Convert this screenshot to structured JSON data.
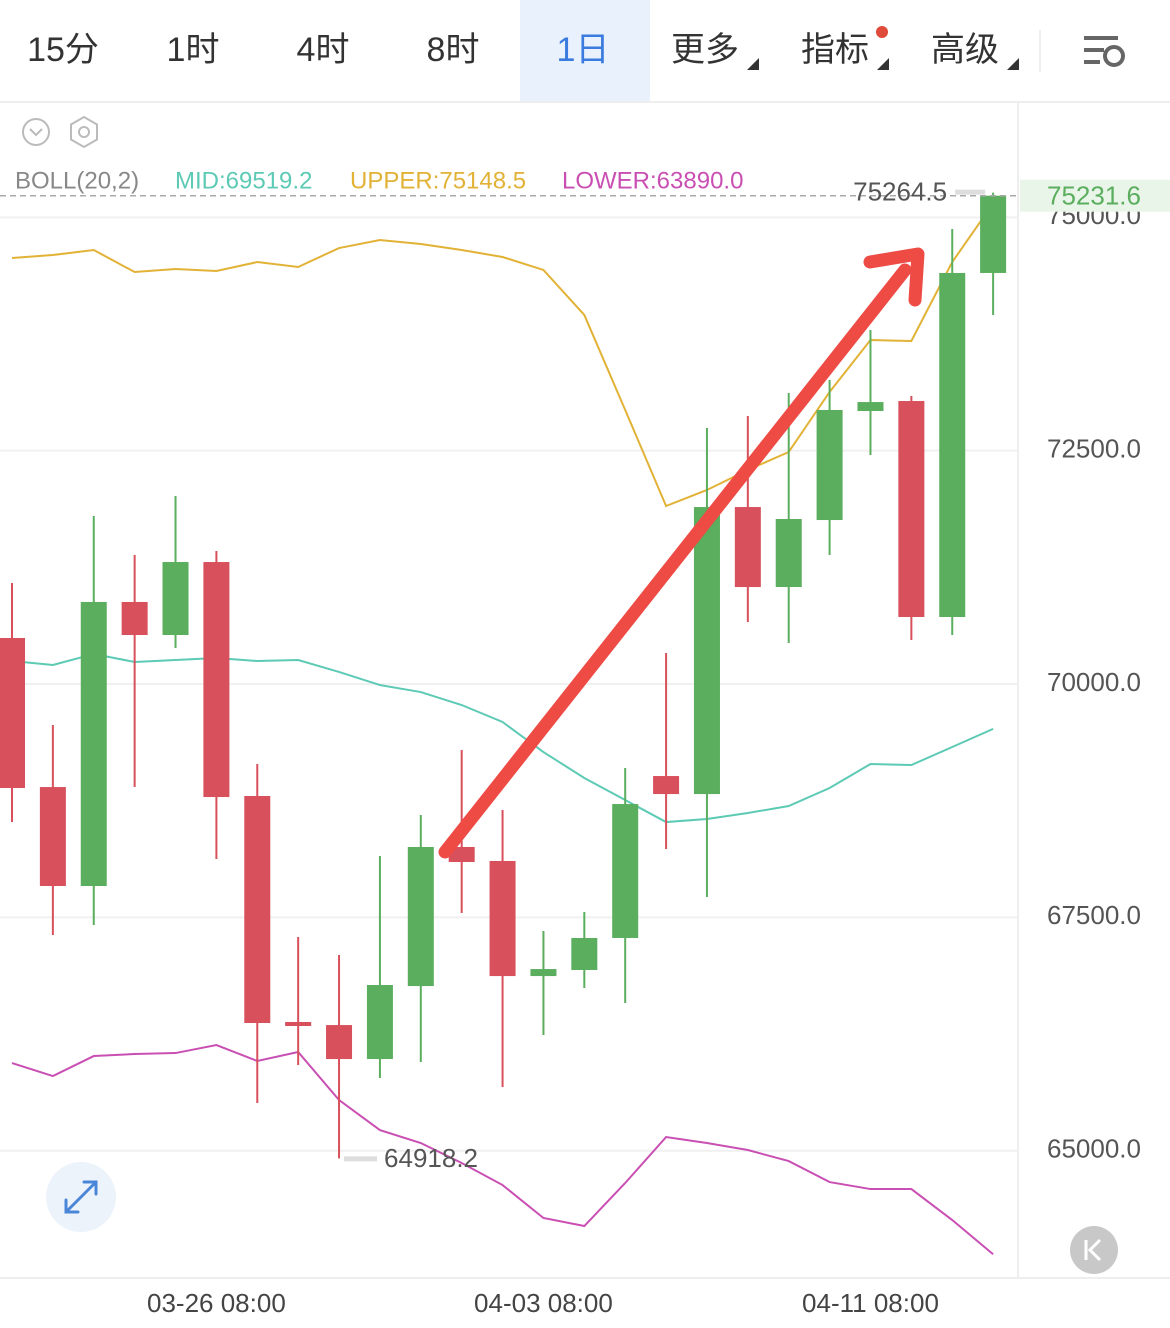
{
  "tabs": [
    "15分",
    "1时",
    "4时",
    "8时",
    "1日",
    "更多",
    "指标",
    "高级"
  ],
  "active_tab": 4,
  "chart_data": {
    "type": "candlestick",
    "header": {
      "indicator": "BOLL(20,2)",
      "mid": "MID:69519.2",
      "upper": "UPPER:75148.5",
      "lower": "LOWER:63890.0"
    },
    "categories": [
      null,
      null,
      null,
      null,
      null,
      "03-26 08:00",
      null,
      null,
      null,
      null,
      null,
      null,
      null,
      "04-03 08:00",
      null,
      null,
      null,
      null,
      null,
      null,
      null,
      "04-11 08:00",
      null,
      null,
      null
    ],
    "open": [
      70493,
      68896,
      67836,
      70879,
      70525,
      71307,
      68800,
      66379,
      66346,
      65982,
      66764,
      68254,
      68104,
      66871,
      66936,
      67279,
      69014,
      68821,
      71896,
      71039,
      71757,
      72925,
      73032,
      70718,
      74404
    ],
    "high": [
      71082,
      69561,
      71800,
      71382,
      72014,
      71425,
      69143,
      67289,
      67096,
      68157,
      68596,
      69293,
      68650,
      67354,
      67557,
      69100,
      70332,
      72743,
      72871,
      73118,
      73257,
      73793,
      73086,
      74875,
      75264.5
    ],
    "low": [
      68521,
      67311,
      67418,
      68896,
      70386,
      68125,
      65511,
      65918,
      64918.2,
      65779,
      65950,
      67546,
      65682,
      66239,
      66743,
      66582,
      68232,
      67718,
      70664,
      70439,
      71382,
      72454,
      70471,
      70525,
      73954
    ],
    "close": [
      68886,
      67836,
      70879,
      70525,
      71307,
      68789,
      66368,
      66336,
      65982,
      66775,
      68254,
      68093,
      66871,
      66946,
      67279,
      68714,
      68821,
      71896,
      71039,
      71768,
      72936,
      73021,
      70718,
      74404,
      75231.6
    ],
    "up_color": "#5aae5e",
    "down_color": "#d8505b",
    "series": [
      {
        "name": "MID",
        "color": "#5ccab4",
        "values": [
          70246,
          70204,
          70321,
          70236,
          70257,
          70279,
          70246,
          70257,
          70129,
          69989,
          69914,
          69775,
          69593,
          69271,
          68993,
          68757,
          68521,
          68554,
          68618,
          68693,
          68886,
          69143,
          69132,
          69325,
          69519.2
        ]
      },
      {
        "name": "UPPER",
        "color": "#e2b236",
        "values": [
          74564,
          74596,
          74650,
          74414,
          74446,
          74425,
          74521,
          74468,
          74671,
          74757,
          74714,
          74650,
          74575,
          74436,
          73954,
          72936,
          71907,
          72079,
          72293,
          72486,
          73129,
          73686,
          73675,
          74521,
          75148.5
        ]
      },
      {
        "name": "LOWER",
        "color": "#c94fb3",
        "values": [
          65939,
          65800,
          66014,
          66036,
          66046,
          66132,
          65961,
          66057,
          65543,
          65221,
          65082,
          64868,
          64632,
          64279,
          64193,
          64654,
          65146,
          65082,
          65007,
          64889,
          64664,
          64589,
          64589,
          64257,
          63890.0
        ]
      }
    ],
    "high_label": "75264.5",
    "low_label": "64918.2",
    "last_price_label": "75231.6",
    "ylim": [
      63636,
      76225
    ],
    "yticks": [
      {
        "value": 65000,
        "label": "65000.0"
      },
      {
        "value": 67500,
        "label": "67500.0"
      },
      {
        "value": 70000,
        "label": "70000.0"
      },
      {
        "value": 72500,
        "label": "72500.0"
      },
      {
        "value": 75000,
        "label": "75000.0"
      }
    ],
    "grid": true
  }
}
